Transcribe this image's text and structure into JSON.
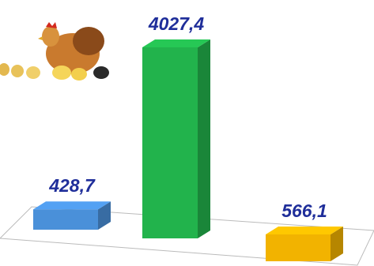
{
  "chart_data": {
    "type": "bar3d",
    "categories": [
      null,
      null,
      null
    ],
    "values": [
      428.7,
      4027.4,
      566.1
    ],
    "value_labels": [
      "428,7",
      "4027,4",
      "566,1"
    ],
    "colors": [
      "#4a90d9",
      "#22b34c",
      "#f2b300"
    ]
  }
}
